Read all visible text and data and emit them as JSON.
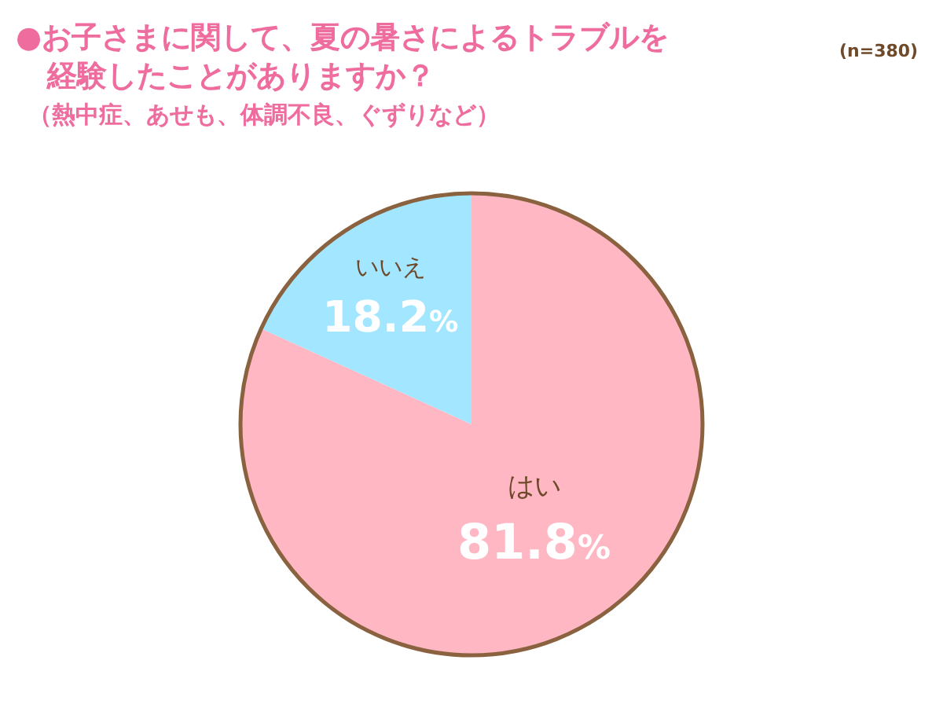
{
  "chart_data": {
    "type": "pie",
    "title": "●お子さまに関して、夏の暑さによるトラブルを経験したことがありますか？",
    "subtitle": "（熱中症、あせも、体調不良、ぐずりなど）",
    "annotations": [
      "(n=380)"
    ],
    "categories": [
      "はい",
      "いいえ"
    ],
    "values": [
      81.8,
      18.2
    ],
    "colors": [
      "#ffb7c3",
      "#a3e6ff"
    ],
    "value_labels": [
      "81.8%",
      "18.2%"
    ],
    "legend": false
  }
}
